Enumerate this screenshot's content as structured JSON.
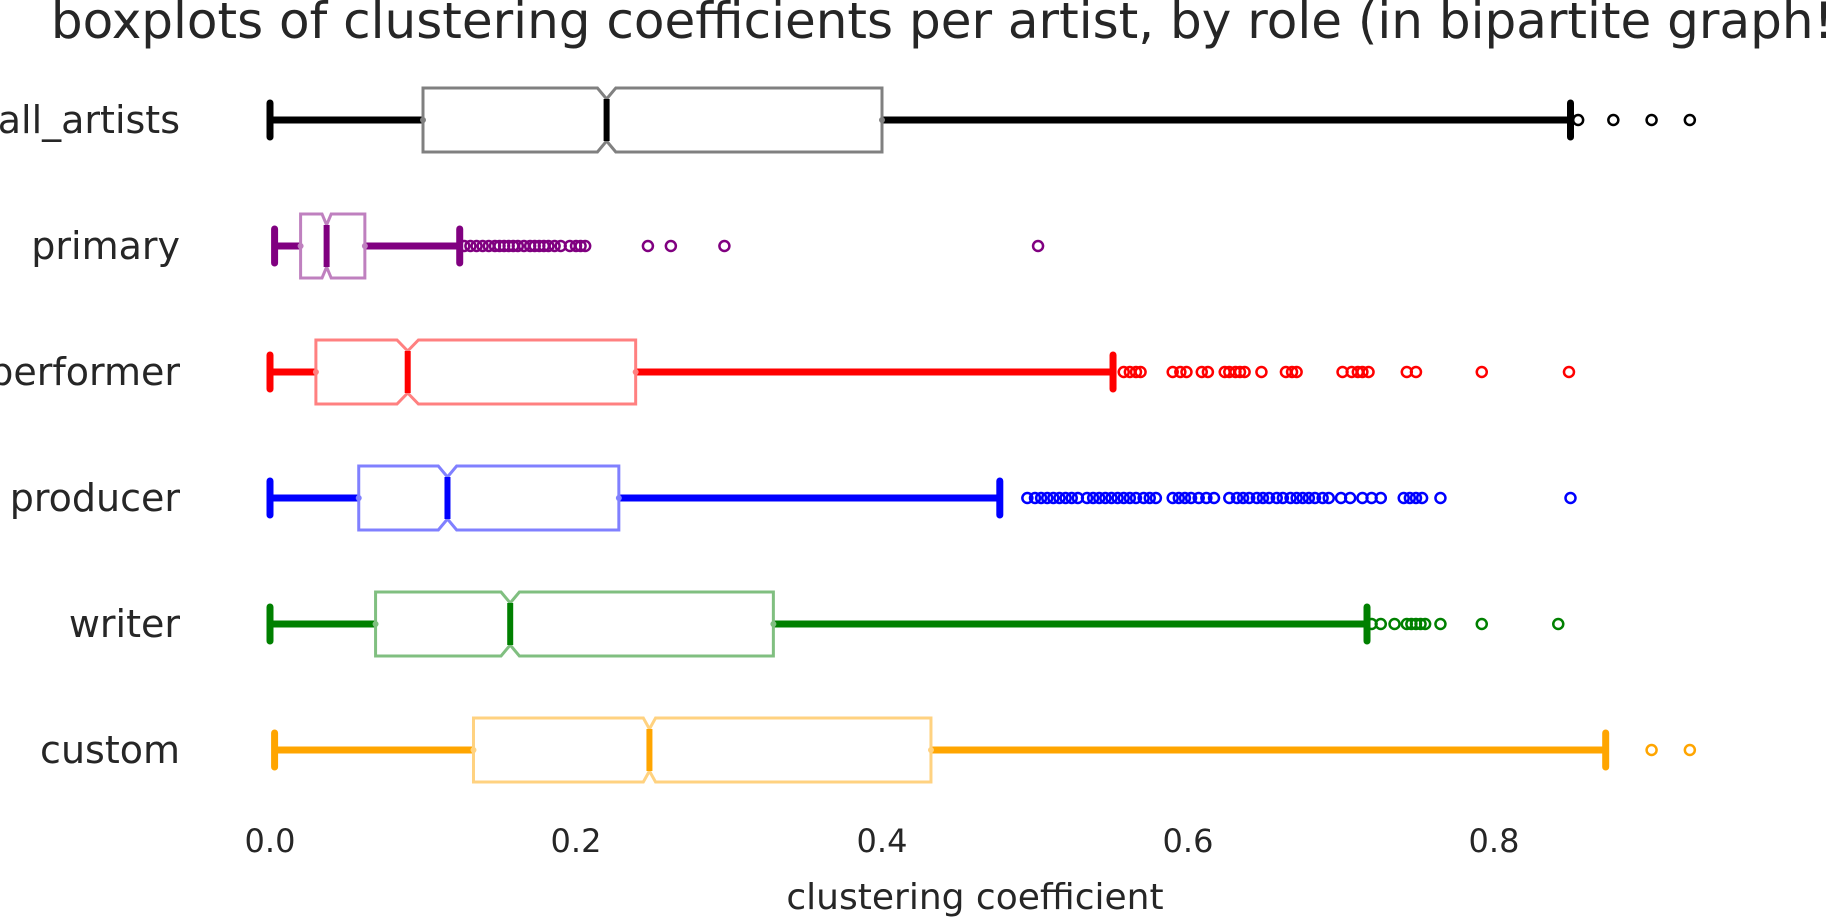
{
  "chart_data": {
    "type": "boxplot",
    "orientation": "horizontal",
    "notched": true,
    "title": "boxplots of clustering coefficients per artist, by role (in bipartite graph!)",
    "xlabel": "clustering coefficient",
    "ylabel": "",
    "xlim": [
      -0.02,
      1.0
    ],
    "xticks": [
      0.0,
      0.2,
      0.4,
      0.6,
      0.8
    ],
    "xtick_labels": [
      "0.0",
      "0.2",
      "0.4",
      "0.6",
      "0.8"
    ],
    "grid": false,
    "series": [
      {
        "name": "all_artists",
        "color": "#000000",
        "box_color": "#808080",
        "whisker_low": 0.0,
        "q1": 0.1,
        "median": 0.22,
        "notch_low": 0.214,
        "notch_high": 0.226,
        "q3": 0.4,
        "whisker_high": 0.85,
        "outliers": [
          0.855,
          0.878,
          0.903,
          0.928
        ]
      },
      {
        "name": "primary",
        "color": "#800080",
        "box_color": "#bf80bf",
        "whisker_low": 0.003,
        "q1": 0.02,
        "median": 0.037,
        "notch_low": 0.034,
        "notch_high": 0.04,
        "q3": 0.062,
        "whisker_high": 0.124,
        "outliers": [
          0.127,
          0.131,
          0.135,
          0.139,
          0.143,
          0.147,
          0.15,
          0.153,
          0.156,
          0.159,
          0.162,
          0.166,
          0.17,
          0.173,
          0.176,
          0.179,
          0.182,
          0.186,
          0.19,
          0.196,
          0.2,
          0.203,
          0.206,
          0.247,
          0.262,
          0.297,
          0.502
        ]
      },
      {
        "name": "performer",
        "color": "#ff0000",
        "box_color": "#ff8080",
        "whisker_low": 0.0,
        "q1": 0.03,
        "median": 0.09,
        "notch_low": 0.083,
        "notch_high": 0.097,
        "q3": 0.239,
        "whisker_high": 0.551,
        "outliers": [
          0.558,
          0.562,
          0.566,
          0.569,
          0.59,
          0.595,
          0.599,
          0.609,
          0.613,
          0.624,
          0.627,
          0.631,
          0.634,
          0.637,
          0.648,
          0.664,
          0.668,
          0.671,
          0.701,
          0.707,
          0.711,
          0.714,
          0.718,
          0.743,
          0.749,
          0.792,
          0.849
        ]
      },
      {
        "name": "producer",
        "color": "#0000ff",
        "box_color": "#8080ff",
        "whisker_low": 0.0,
        "q1": 0.058,
        "median": 0.116,
        "notch_low": 0.11,
        "notch_high": 0.122,
        "q3": 0.228,
        "whisker_high": 0.477,
        "outliers": [
          0.495,
          0.5,
          0.504,
          0.508,
          0.512,
          0.516,
          0.52,
          0.524,
          0.528,
          0.534,
          0.538,
          0.542,
          0.546,
          0.55,
          0.554,
          0.558,
          0.562,
          0.566,
          0.571,
          0.575,
          0.579,
          0.59,
          0.594,
          0.598,
          0.602,
          0.607,
          0.612,
          0.617,
          0.627,
          0.632,
          0.636,
          0.64,
          0.645,
          0.649,
          0.653,
          0.658,
          0.662,
          0.667,
          0.671,
          0.675,
          0.679,
          0.683,
          0.688,
          0.692,
          0.7,
          0.706,
          0.714,
          0.72,
          0.726,
          0.741,
          0.745,
          0.749,
          0.753,
          0.765,
          0.85
        ]
      },
      {
        "name": "writer",
        "color": "#008000",
        "box_color": "#80bf80",
        "whisker_low": 0.0,
        "q1": 0.069,
        "median": 0.157,
        "notch_low": 0.151,
        "notch_high": 0.163,
        "q3": 0.329,
        "whisker_high": 0.717,
        "outliers": [
          0.72,
          0.726,
          0.735,
          0.743,
          0.746,
          0.749,
          0.752,
          0.755,
          0.765,
          0.792,
          0.842
        ]
      },
      {
        "name": "custom",
        "color": "#ffa500",
        "box_color": "#ffd280",
        "whisker_low": 0.003,
        "q1": 0.133,
        "median": 0.248,
        "notch_low": 0.244,
        "notch_high": 0.252,
        "q3": 0.432,
        "whisker_high": 0.873,
        "outliers": [
          0.903,
          0.928
        ]
      }
    ]
  }
}
